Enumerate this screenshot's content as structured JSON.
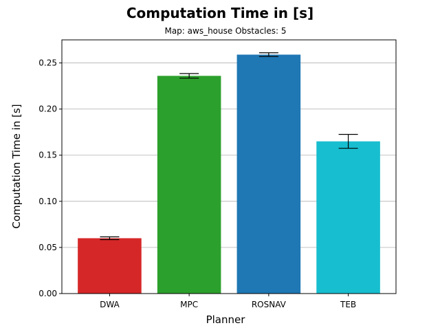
{
  "chart_data": {
    "type": "bar",
    "title": "Computation Time in [s]",
    "subtitle": "Map: aws_house Obstacles: 5",
    "xlabel": "Planner",
    "ylabel": "Computation Time in [s]",
    "categories": [
      "DWA",
      "MPC",
      "ROSNAV",
      "TEB"
    ],
    "values": [
      0.06,
      0.236,
      0.259,
      0.165
    ],
    "errors": [
      0.0015,
      0.0025,
      0.002,
      0.0075
    ],
    "colors": [
      "#d62728",
      "#2ca02c",
      "#1f77b4",
      "#17becf"
    ],
    "ylim": [
      0,
      0.275
    ],
    "yticks": [
      0.0,
      0.05,
      0.1,
      0.15,
      0.2,
      0.25
    ],
    "ytick_labels": [
      "0.00",
      "0.05",
      "0.10",
      "0.15",
      "0.20",
      "0.25"
    ],
    "grid": "horizontal",
    "legend": "none"
  }
}
